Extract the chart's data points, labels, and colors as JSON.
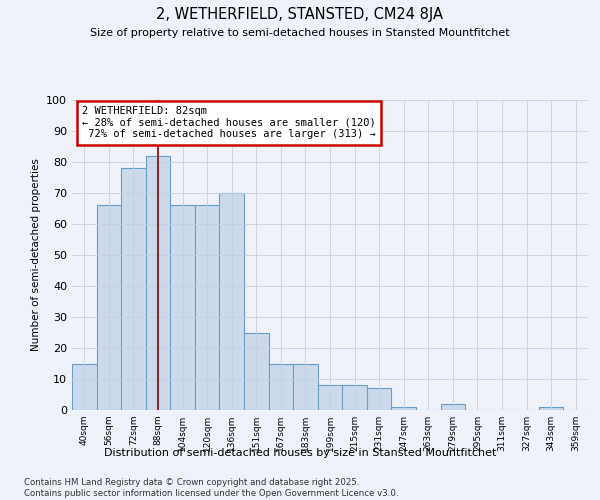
{
  "title": "2, WETHERFIELD, STANSTED, CM24 8JA",
  "subtitle": "Size of property relative to semi-detached houses in Stansted Mountfitchet",
  "xlabel": "Distribution of semi-detached houses by size in Stansted Mountfitchet",
  "ylabel": "Number of semi-detached properties",
  "categories": [
    "40sqm",
    "56sqm",
    "72sqm",
    "88sqm",
    "104sqm",
    "120sqm",
    "136sqm",
    "151sqm",
    "167sqm",
    "183sqm",
    "199sqm",
    "215sqm",
    "231sqm",
    "247sqm",
    "263sqm",
    "279sqm",
    "295sqm",
    "311sqm",
    "327sqm",
    "343sqm",
    "359sqm"
  ],
  "values": [
    15,
    66,
    78,
    82,
    66,
    66,
    70,
    25,
    15,
    15,
    8,
    8,
    7,
    1,
    0,
    2,
    0,
    0,
    0,
    1,
    0
  ],
  "bar_color": "#ccd9ea",
  "bar_edge_color": "#6b9ec8",
  "red_line_x": 3.5,
  "annotation_lines": [
    "2 WETHERFIELD: 82sqm",
    "← 28% of semi-detached houses are smaller (120)",
    " 72% of semi-detached houses are larger (313) →"
  ],
  "annotation_box_color": "#ffffff",
  "annotation_box_edge": "#cc0000",
  "footer_line1": "Contains HM Land Registry data © Crown copyright and database right 2025.",
  "footer_line2": "Contains public sector information licensed under the Open Government Licence v3.0.",
  "ylim": [
    0,
    100
  ],
  "background_color": "#eef1f8"
}
